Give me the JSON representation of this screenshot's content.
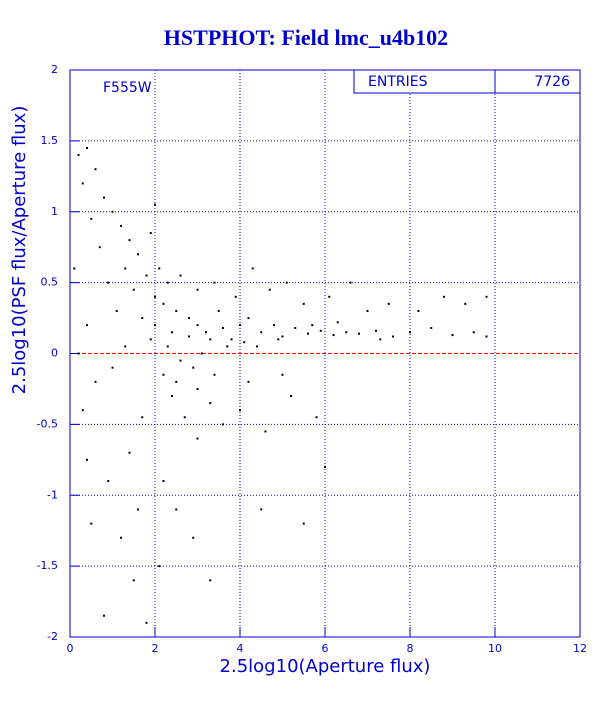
{
  "chart_data": {
    "type": "scatter",
    "title": "HSTPHOT: Field lmc_u4b102",
    "annotation": "F555W",
    "stats": {
      "label": "ENTRIES",
      "value": 7726
    },
    "x_label": "2.5log10(Aperture flux)",
    "y_label": "2.5log10(PSF flux/Aperture flux)",
    "xlim": [
      0,
      12
    ],
    "ylim": [
      -2,
      2
    ],
    "xticks": [
      0,
      2,
      4,
      6,
      8,
      10,
      12
    ],
    "yticks": [
      -2,
      -1.5,
      -1,
      -0.5,
      0,
      0.5,
      1,
      1.5,
      2
    ],
    "grid": true,
    "grid_color": "#0000cc",
    "reference_line": {
      "y": 0,
      "color": "#ff0000"
    },
    "color": "#000000",
    "x": [
      0.2,
      0.4,
      0.3,
      0.6,
      0.8,
      0.5,
      1.0,
      1.2,
      1.4,
      0.7,
      1.6,
      1.3,
      1.8,
      0.9,
      1.5,
      2.0,
      1.1,
      1.7,
      0.4,
      1.9,
      2.2,
      2.5,
      2.8,
      3.0,
      3.2,
      3.5,
      3.8,
      4.0,
      4.2,
      4.5,
      4.8,
      5.0,
      5.3,
      5.6,
      5.9,
      6.2,
      6.5,
      6.8,
      7.2,
      7.6,
      8.0,
      8.5,
      9.0,
      9.5,
      9.8,
      2.3,
      2.6,
      2.9,
      3.1,
      3.4,
      3.7,
      4.1,
      4.4,
      2.4,
      2.7,
      3.0,
      3.3,
      3.6,
      4.0,
      4.6,
      5.2,
      5.8,
      6.0,
      2.2,
      2.5,
      2.9,
      3.3,
      2.1,
      1.8,
      1.5,
      1.2,
      0.8,
      0.5,
      0.9,
      1.4,
      1.7,
      0.3,
      0.6,
      1.0,
      1.3,
      2.0,
      2.1,
      2.3,
      2.6,
      3.0,
      3.4,
      3.9,
      4.3,
      4.7,
      5.1,
      5.5,
      6.1,
      6.6,
      7.0,
      7.5,
      8.2,
      8.8,
      9.3,
      9.8,
      2.4,
      2.8,
      3.3,
      3.6,
      4.9,
      5.7,
      6.3,
      7.3,
      2.2,
      2.5,
      3.0,
      4.2,
      5.0,
      4.5,
      5.5,
      2.0,
      1.9,
      0.1,
      0.2,
      0.4,
      1.6
    ],
    "values": [
      1.4,
      1.45,
      1.2,
      1.3,
      1.1,
      0.95,
      1.0,
      0.9,
      0.8,
      0.75,
      0.7,
      0.6,
      0.55,
      0.5,
      0.45,
      0.4,
      0.3,
      0.25,
      0.2,
      0.1,
      0.35,
      0.3,
      0.25,
      0.2,
      0.15,
      0.3,
      0.1,
      0.2,
      0.25,
      0.15,
      0.2,
      0.12,
      0.18,
      0.14,
      0.16,
      0.13,
      0.15,
      0.14,
      0.16,
      0.12,
      0.15,
      0.18,
      0.13,
      0.15,
      0.12,
      0.05,
      -0.05,
      -0.1,
      0.0,
      -0.15,
      0.05,
      0.08,
      0.05,
      -0.3,
      -0.45,
      -0.6,
      -0.35,
      -0.5,
      -0.4,
      -0.55,
      -0.3,
      -0.45,
      -0.8,
      -0.9,
      -1.1,
      -1.3,
      -1.6,
      -1.5,
      -1.9,
      -1.6,
      -1.3,
      -1.85,
      -1.2,
      -0.9,
      -0.7,
      -0.45,
      -0.4,
      -0.2,
      -0.1,
      0.05,
      0.2,
      0.6,
      0.5,
      0.55,
      0.45,
      0.5,
      0.4,
      0.6,
      0.45,
      0.5,
      0.35,
      0.4,
      0.5,
      0.3,
      0.35,
      0.3,
      0.4,
      0.35,
      0.4,
      0.15,
      0.12,
      0.1,
      0.18,
      0.1,
      0.2,
      0.22,
      0.1,
      -0.15,
      -0.2,
      -0.25,
      -0.2,
      -0.15,
      -1.1,
      -1.2,
      1.05,
      0.85,
      0.6,
      0.0,
      -0.75,
      -1.1
    ]
  }
}
